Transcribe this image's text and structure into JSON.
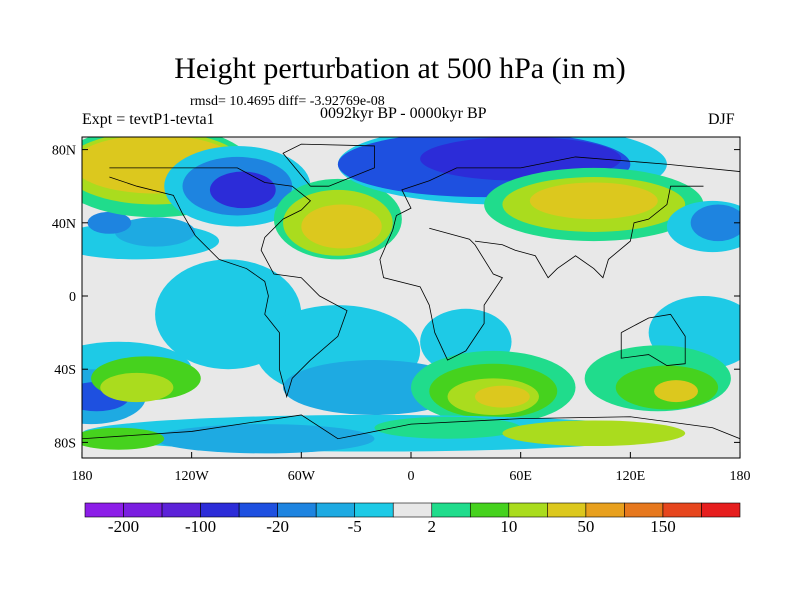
{
  "title": "Height perturbation at 500 hPa (in m)",
  "stats": "rmsd= 10.4695 diff= -3.92769e-08",
  "experiment": "Expt = tevtP1-tevta1",
  "period": "0092kyr BP - 0000kyr BP",
  "season": "DJF",
  "map": {
    "lat_ticks": [
      "80N",
      "40N",
      "0",
      "40S",
      "80S"
    ],
    "lat_values": [
      80,
      40,
      0,
      -40,
      -80
    ],
    "lon_ticks": [
      "180",
      "120W",
      "60W",
      "0",
      "60E",
      "120E",
      "180"
    ],
    "lon_values": [
      -180,
      -120,
      -60,
      0,
      60,
      120,
      180
    ],
    "background_color": "#e8e8e8"
  },
  "colorbar": {
    "colors": [
      "#8c1ee8",
      "#7a1ee0",
      "#5c22d8",
      "#2c2cd8",
      "#1e50e0",
      "#1e84e0",
      "#1eaae2",
      "#1ecae6",
      "#e8e8e8",
      "#20dc8c",
      "#46d21e",
      "#aadc1e",
      "#dcc81e",
      "#e8a01e",
      "#e6781e",
      "#e6461e",
      "#e61e1e"
    ],
    "labels": [
      "-200",
      "-100",
      "-20",
      "-5",
      "2",
      "10",
      "50",
      "150"
    ],
    "label_boundaries": [
      1,
      3,
      5,
      7,
      9,
      11,
      13,
      15
    ]
  }
}
